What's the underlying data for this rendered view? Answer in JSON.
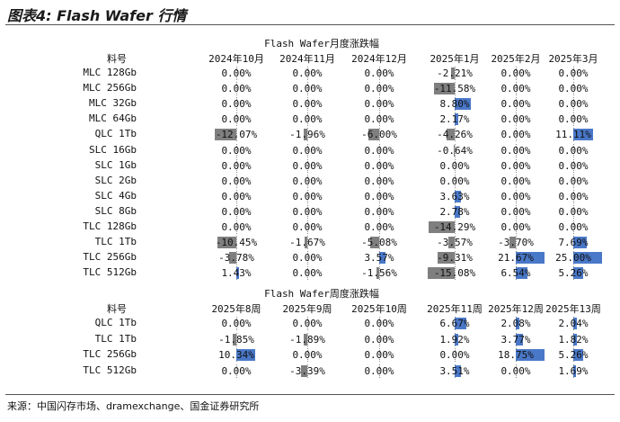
{
  "title": "图表4: Flash Wafer 行情",
  "source": "来源：中国闪存市场、dramexchange、国金证券研究所",
  "colors": {
    "positive": "#4a78c8",
    "negative": "#7f7f7f"
  },
  "table1": {
    "caption": "Flash Wafer月度涨跌幅",
    "row_header": "料号",
    "columns": [
      "2024年10月",
      "2024年11月",
      "2024年12月",
      "2025年1月",
      "2025年2月",
      "2025年3月"
    ],
    "rows": [
      {
        "label": "MLC 128Gb",
        "values": [
          0.0,
          0.0,
          0.0,
          -2.21,
          0.0,
          0.0
        ],
        "text": [
          "0.00%",
          "0.00%",
          "0.00%",
          "-2.21%",
          "0.00%",
          "0.00%"
        ]
      },
      {
        "label": "MLC 256Gb",
        "values": [
          0.0,
          0.0,
          0.0,
          -11.58,
          0.0,
          0.0
        ],
        "text": [
          "0.00%",
          "0.00%",
          "0.00%",
          "-11.58%",
          "0.00%",
          "0.00%"
        ]
      },
      {
        "label": "MLC 32Gb",
        "values": [
          0.0,
          0.0,
          0.0,
          8.8,
          0.0,
          0.0
        ],
        "text": [
          "0.00%",
          "0.00%",
          "0.00%",
          "8.80%",
          "0.00%",
          "0.00%"
        ]
      },
      {
        "label": "MLC 64Gb",
        "values": [
          0.0,
          0.0,
          0.0,
          2.17,
          0.0,
          0.0
        ],
        "text": [
          "0.00%",
          "0.00%",
          "0.00%",
          "2.17%",
          "0.00%",
          "0.00%"
        ]
      },
      {
        "label": "QLC 1Tb",
        "values": [
          -12.07,
          -1.96,
          -6.0,
          -4.26,
          0.0,
          11.11
        ],
        "text": [
          "-12.07%",
          "-1.96%",
          "-6.00%",
          "-4.26%",
          "0.00%",
          "11.11%"
        ]
      },
      {
        "label": "SLC 16Gb",
        "values": [
          0.0,
          0.0,
          0.0,
          -0.64,
          0.0,
          0.0
        ],
        "text": [
          "0.00%",
          "0.00%",
          "0.00%",
          "-0.64%",
          "0.00%",
          "0.00%"
        ]
      },
      {
        "label": "SLC 1Gb",
        "values": [
          0.0,
          0.0,
          0.0,
          0.0,
          0.0,
          0.0
        ],
        "text": [
          "0.00%",
          "0.00%",
          "0.00%",
          "0.00%",
          "0.00%",
          "0.00%"
        ]
      },
      {
        "label": "SLC 2Gb",
        "values": [
          0.0,
          0.0,
          0.0,
          0.0,
          0.0,
          0.0
        ],
        "text": [
          "0.00%",
          "0.00%",
          "0.00%",
          "0.00%",
          "0.00%",
          "0.00%"
        ]
      },
      {
        "label": "SLC 4Gb",
        "values": [
          0.0,
          0.0,
          0.0,
          3.63,
          0.0,
          0.0
        ],
        "text": [
          "0.00%",
          "0.00%",
          "0.00%",
          "3.63%",
          "0.00%",
          "0.00%"
        ]
      },
      {
        "label": "SLC 8Gb",
        "values": [
          0.0,
          0.0,
          0.0,
          2.78,
          0.0,
          0.0
        ],
        "text": [
          "0.00%",
          "0.00%",
          "0.00%",
          "2.78%",
          "0.00%",
          "0.00%"
        ]
      },
      {
        "label": "TLC 128Gb",
        "values": [
          0.0,
          0.0,
          0.0,
          -14.29,
          0.0,
          0.0
        ],
        "text": [
          "0.00%",
          "0.00%",
          "0.00%",
          "-14.29%",
          "0.00%",
          "0.00%"
        ]
      },
      {
        "label": "TLC 1Tb",
        "values": [
          -10.45,
          -1.67,
          -5.08,
          -3.57,
          -3.7,
          7.69
        ],
        "text": [
          "-10.45%",
          "-1.67%",
          "-5.08%",
          "-3.57%",
          "-3.70%",
          "7.69%"
        ]
      },
      {
        "label": "TLC 256Gb",
        "values": [
          -3.78,
          0.0,
          3.57,
          -9.31,
          21.67,
          25.0
        ],
        "text": [
          "-3.78%",
          "0.00%",
          "3.57%",
          "-9.31%",
          "21.67%",
          "25.00%"
        ]
      },
      {
        "label": "TLC 512Gb",
        "values": [
          1.43,
          0.0,
          -1.56,
          -15.08,
          6.54,
          5.26
        ],
        "text": [
          "1.43%",
          "0.00%",
          "-1.56%",
          "-15.08%",
          "6.54%",
          "5.26%"
        ]
      }
    ]
  },
  "table2": {
    "caption": "Flash Wafer周度涨跌幅",
    "row_header": "料号",
    "columns": [
      "2025年8周",
      "2025年9周",
      "2025年10周",
      "2025年11周",
      "2025年12周",
      "2025年13周"
    ],
    "rows": [
      {
        "label": "QLC 1Tb",
        "values": [
          0.0,
          0.0,
          0.0,
          6.67,
          2.08,
          2.04
        ],
        "text": [
          "0.00%",
          "0.00%",
          "0.00%",
          "6.67%",
          "2.08%",
          "2.04%"
        ]
      },
      {
        "label": "TLC 1Tb",
        "values": [
          -1.85,
          -1.89,
          0.0,
          1.92,
          3.77,
          1.82
        ],
        "text": [
          "-1.85%",
          "-1.89%",
          "0.00%",
          "1.92%",
          "3.77%",
          "1.82%"
        ]
      },
      {
        "label": "TLC 256Gb",
        "values": [
          10.34,
          0.0,
          0.0,
          0.0,
          18.75,
          5.26
        ],
        "text": [
          "10.34%",
          "0.00%",
          "0.00%",
          "0.00%",
          "18.75%",
          "5.26%"
        ]
      },
      {
        "label": "TLC 512Gb",
        "values": [
          0.0,
          -3.39,
          0.0,
          3.51,
          0.0,
          1.69
        ],
        "text": [
          "0.00%",
          "-3.39%",
          "0.00%",
          "3.51%",
          "0.00%",
          "1.69%"
        ]
      }
    ]
  }
}
